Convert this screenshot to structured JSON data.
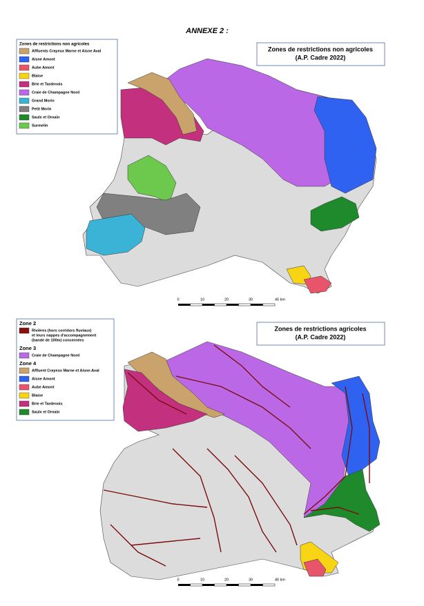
{
  "title": "ANNEXE 2 :",
  "maps": [
    {
      "box_title": [
        "Zones de restrictions non agricoles",
        "(A.P. Cadre 2022)"
      ],
      "legend": [
        {
          "heading": "Zones de restrictions non agricoles",
          "items": [
            {
              "label": [
                "Affluents Crayeux Marne et Aisne Aval"
              ],
              "color": "#c9a36b"
            },
            {
              "label": [
                "Aisne Amont"
              ],
              "color": "#2f62f0"
            },
            {
              "label": [
                "Aube Amont"
              ],
              "color": "#e8546a"
            },
            {
              "label": [
                "Blaise"
              ],
              "color": "#f7d414"
            },
            {
              "label": [
                "Brie et Tardenois"
              ],
              "color": "#c2307e"
            },
            {
              "label": [
                "Craie de Champagne Nord"
              ],
              "color": "#bb68e6"
            },
            {
              "label": [
                "Grand Morin"
              ],
              "color": "#3ab3d6"
            },
            {
              "label": [
                "Petit Morin"
              ],
              "color": "#808080"
            },
            {
              "label": [
                "Saulx et Ornain"
              ],
              "color": "#1e8a2c"
            },
            {
              "label": [
                "Surmelin"
              ],
              "color": "#6cc94e"
            }
          ]
        }
      ],
      "scale": [
        "0",
        "10",
        "20",
        "30",
        "40 km"
      ]
    },
    {
      "box_title": [
        "Zones de restrictions agricoles",
        "(A.P. Cadre 2022)"
      ],
      "legend": [
        {
          "heading": "Zone 2",
          "items": [
            {
              "label": [
                "Rivières (hors corridors fluviaux)",
                "et leurs nappes d'accompagnement",
                "(bande de 100m) concernées"
              ],
              "color": "#8b0f0f"
            }
          ]
        },
        {
          "heading": "Zone 3",
          "items": [
            {
              "label": [
                "Craie de Champagne Nord"
              ],
              "color": "#bb68e6"
            }
          ]
        },
        {
          "heading": "Zone 4",
          "items": [
            {
              "label": [
                "Affluent Crayeux Marne et Aisne-Aval"
              ],
              "color": "#c9a36b"
            },
            {
              "label": [
                "Aisne Amont"
              ],
              "color": "#2f62f0"
            },
            {
              "label": [
                "Aube Amont"
              ],
              "color": "#e8546a"
            },
            {
              "label": [
                "Blaise"
              ],
              "color": "#f7d414"
            },
            {
              "label": [
                "Brie et Tardenois"
              ],
              "color": "#c2307e"
            },
            {
              "label": [
                "Saulx et Ornain"
              ],
              "color": "#1e8a2c"
            }
          ]
        }
      ],
      "scale": [
        "0",
        "10",
        "20",
        "30",
        "40 km"
      ]
    }
  ]
}
